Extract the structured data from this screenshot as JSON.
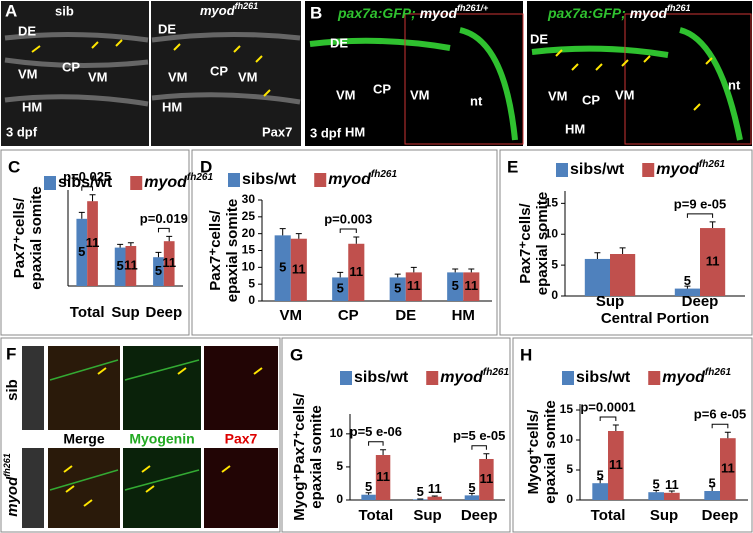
{
  "chart_data": [
    {
      "type": "bar",
      "panel": "C",
      "ylabel": [
        "Pax7⁺cells/",
        "epaxial somite"
      ],
      "categories": [
        "Total",
        "Sup",
        "Deep"
      ],
      "series": [
        {
          "name": "sibs/wt",
          "color": "#4f81bd",
          "values": [
            42,
            24,
            18
          ],
          "errors": [
            4,
            2,
            3
          ],
          "n": [
            5,
            5,
            5
          ]
        },
        {
          "name": "myod",
          "name_sup": "fh261",
          "color": "#c0504d",
          "values": [
            53,
            25,
            28
          ],
          "errors": [
            4,
            2,
            3
          ],
          "n": [
            11,
            11,
            11
          ]
        }
      ],
      "ylim": [
        0,
        60
      ],
      "annotations": [
        {
          "text": "p=0.025",
          "category": 0
        },
        {
          "text": "p=0.019",
          "category": 2
        }
      ]
    },
    {
      "type": "bar",
      "panel": "D",
      "ylabel": [
        "Pax7⁺cells/",
        "epaxial somite"
      ],
      "categories": [
        "VM",
        "CP",
        "DE",
        "HM"
      ],
      "series": [
        {
          "name": "sibs/wt",
          "color": "#4f81bd",
          "values": [
            19.5,
            7,
            7,
            8.5
          ],
          "errors": [
            2,
            1.5,
            1,
            1
          ],
          "n": [
            5,
            5,
            5,
            5
          ]
        },
        {
          "name": "myod",
          "name_sup": "fh261",
          "color": "#c0504d",
          "values": [
            18.5,
            17,
            8.5,
            8.5
          ],
          "errors": [
            1.5,
            2,
            1.5,
            1
          ],
          "n": [
            11,
            11,
            11,
            11
          ]
        }
      ],
      "ylim": [
        0,
        30
      ],
      "yticks": [
        0,
        5,
        10,
        15,
        20,
        25,
        30
      ],
      "annotations": [
        {
          "text": "p=0.003",
          "category": 1
        }
      ]
    },
    {
      "type": "bar",
      "panel": "E",
      "ylabel": [
        "Pax7⁺cells/",
        "epaxial somite"
      ],
      "categories": [
        "Sup",
        "Deep"
      ],
      "xlabel": "Central Portion",
      "series": [
        {
          "name": "sibs/wt",
          "color": "#4f81bd",
          "values": [
            6,
            1.2
          ],
          "errors": [
            1,
            0.4
          ],
          "n": [
            null,
            5
          ]
        },
        {
          "name": "myod",
          "name_sup": "fh261",
          "color": "#c0504d",
          "values": [
            6.8,
            11
          ],
          "errors": [
            1,
            1
          ],
          "n": [
            null,
            11
          ]
        }
      ],
      "ylim": [
        0,
        17
      ],
      "yticks": [
        0,
        5,
        10,
        15
      ],
      "annotations": [
        {
          "text": "p=9 e-05",
          "category": 1
        }
      ]
    },
    {
      "type": "bar",
      "panel": "G",
      "ylabel": [
        "Myog⁺Pax7⁺cells/",
        "epaxial somite"
      ],
      "categories": [
        "Total",
        "Sup",
        "Deep"
      ],
      "series": [
        {
          "name": "sibs/wt",
          "color": "#4f81bd",
          "values": [
            0.8,
            0.1,
            0.7
          ],
          "errors": [
            0.3,
            0.05,
            0.3
          ],
          "n": [
            5,
            5,
            5
          ]
        },
        {
          "name": "myod",
          "name_sup": "fh261",
          "color": "#c0504d",
          "values": [
            6.8,
            0.5,
            6.2
          ],
          "errors": [
            0.8,
            0.1,
            0.8
          ],
          "n": [
            11,
            11,
            11
          ]
        }
      ],
      "ylim": [
        0,
        13
      ],
      "yticks": [
        0,
        5,
        10
      ],
      "annotations": [
        {
          "text": "p=5 e-06",
          "category": 0
        },
        {
          "text": "p=5 e-05",
          "category": 2
        }
      ]
    },
    {
      "type": "bar",
      "panel": "H",
      "ylabel": [
        "Myog⁺cells/",
        "epaxial somite"
      ],
      "categories": [
        "Total",
        "Sup",
        "Deep"
      ],
      "series": [
        {
          "name": "sibs/wt",
          "color": "#4f81bd",
          "values": [
            2.8,
            1.3,
            1.5
          ],
          "errors": [
            0.6,
            0.3,
            0.8
          ],
          "n": [
            5,
            5,
            5
          ]
        },
        {
          "name": "myod",
          "name_sup": "fh261",
          "color": "#c0504d",
          "values": [
            11.5,
            1.2,
            10.3
          ],
          "errors": [
            1,
            0.3,
            1
          ],
          "n": [
            11,
            11,
            11
          ]
        }
      ],
      "ylim": [
        0,
        16
      ],
      "yticks": [
        0,
        5,
        10,
        15
      ],
      "annotations": [
        {
          "text": "p=0.0001",
          "category": 0
        },
        {
          "text": "p=6 e-05",
          "category": 2
        }
      ]
    }
  ],
  "images": {
    "A": {
      "panel": "A",
      "sib": "sib",
      "mutant": "myod",
      "mutant_sup": "fh261",
      "labels": [
        "DE",
        "VM",
        "CP",
        "VM",
        "HM",
        "DE",
        "VM",
        "CP",
        "VM",
        "HM"
      ],
      "stage": "3 dpf",
      "stain": "Pax7"
    },
    "B": {
      "panel": "B",
      "left_title": "pax7a:GFP;",
      "left_gene": "myod",
      "left_sup": "fh261/+",
      "right_title": "pax7a:GFP;",
      "right_gene": "myod",
      "right_sup": "fh261",
      "labels": [
        "DE",
        "VM",
        "CP",
        "VM",
        "nt",
        "HM",
        "DE",
        "VM",
        "CP",
        "VM",
        "nt",
        "HM"
      ],
      "stage": "3 dpf"
    },
    "F": {
      "panel": "F",
      "sib": "sib",
      "mutant": "myod",
      "mutant_sup": "fh261",
      "channels": [
        "Merge",
        "Myogenin",
        "Pax7"
      ]
    }
  }
}
